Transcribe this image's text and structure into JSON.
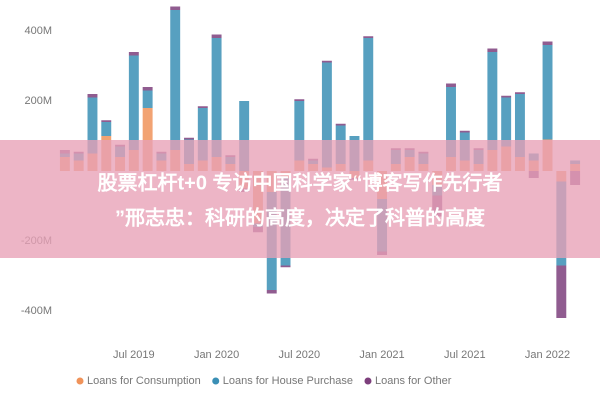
{
  "chart_data": {
    "type": "bar",
    "stacked": true,
    "categories": [
      null,
      null,
      null,
      null,
      null,
      "Jul 2019",
      null,
      null,
      null,
      null,
      null,
      "Jan 2020",
      null,
      null,
      null,
      null,
      null,
      "Jul 2020",
      null,
      null,
      null,
      null,
      null,
      "Jan 2021",
      null,
      null,
      null,
      null,
      null,
      "Jul 2021",
      null,
      null,
      null,
      null,
      null,
      "Jan 2022",
      null,
      null
    ],
    "series": [
      {
        "name": "Loans for Consumption",
        "color": "#f0935a",
        "values": [
          40,
          30,
          50,
          100,
          40,
          60,
          180,
          30,
          60,
          20,
          30,
          40,
          20,
          -50,
          -150,
          -60,
          -20,
          30,
          20,
          10,
          20,
          -20,
          30,
          -80,
          20,
          40,
          20,
          -40,
          40,
          30,
          20,
          60,
          70,
          40,
          30,
          90,
          -30,
          20
        ]
      },
      {
        "name": "Loans for House Purchase",
        "color": "#3a8fb5",
        "values": [
          10,
          20,
          160,
          40,
          30,
          270,
          50,
          20,
          400,
          70,
          150,
          340,
          20,
          200,
          -10,
          -280,
          -250,
          170,
          10,
          300,
          110,
          100,
          350,
          -150,
          40,
          20,
          30,
          -30,
          200,
          80,
          40,
          280,
          140,
          180,
          20,
          270,
          -240,
          10
        ]
      },
      {
        "name": "Loans for Other",
        "color": "#7d3f7c",
        "values": [
          10,
          5,
          10,
          5,
          5,
          10,
          10,
          5,
          10,
          5,
          5,
          10,
          5,
          -10,
          -15,
          -10,
          -5,
          5,
          5,
          5,
          5,
          -5,
          5,
          -10,
          5,
          5,
          5,
          -60,
          10,
          5,
          5,
          10,
          5,
          5,
          -20,
          10,
          -150,
          -40
        ]
      }
    ],
    "ylim": [
      -460,
      460
    ],
    "yticks": [
      {
        "value": 400,
        "label": "400M"
      },
      {
        "value": 200,
        "label": "200M"
      },
      {
        "value": -200,
        "label": "-200M"
      },
      {
        "value": -400,
        "label": "-400M"
      }
    ],
    "grid": false
  },
  "overlay": {
    "lines": [
      "股票杠杆t+0 专访中国科学家“博客写作先行者",
      "”邢志忠：科研的高度，决定了科普的高度"
    ]
  }
}
